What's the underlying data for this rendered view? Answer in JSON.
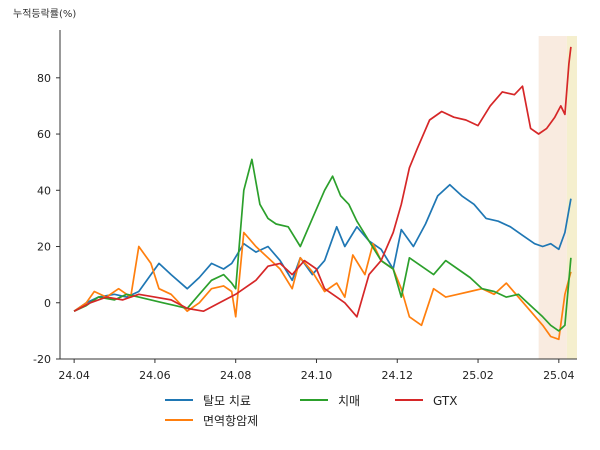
{
  "chart_data": {
    "type": "line",
    "title": "",
    "ylabel": "누적등락률(%)",
    "xlabel": "",
    "ylim": [
      -20,
      97
    ],
    "x_range": [
      -0.35,
      12.45
    ],
    "x_ticks": [
      {
        "label": "24.04",
        "value": 0
      },
      {
        "label": "24.06",
        "value": 2
      },
      {
        "label": "24.08",
        "value": 4
      },
      {
        "label": "24.10",
        "value": 6
      },
      {
        "label": "24.12",
        "value": 8
      },
      {
        "label": "25.02",
        "value": 10
      },
      {
        "label": "25.04",
        "value": 12
      }
    ],
    "y_ticks": [
      {
        "label": "-20",
        "value": -20
      },
      {
        "label": "0",
        "value": 0
      },
      {
        "label": "20",
        "value": 20
      },
      {
        "label": "40",
        "value": 40
      },
      {
        "label": "60",
        "value": 60
      },
      {
        "label": "80",
        "value": 80
      }
    ],
    "highlight_bands": [
      {
        "x0": 11.5,
        "x1": 12.2,
        "color": "#f9ebe0"
      },
      {
        "x0": 12.2,
        "x1": 12.45,
        "color": "#f5efce"
      }
    ],
    "series": [
      {
        "name": "탈모 치료",
        "color": "#1f77b4",
        "x": [
          0,
          0.3,
          0.6,
          1.0,
          1.3,
          1.6,
          1.9,
          2.1,
          2.4,
          2.8,
          3.1,
          3.4,
          3.7,
          3.9,
          4.2,
          4.5,
          4.8,
          5.1,
          5.4,
          5.6,
          5.9,
          6.2,
          6.5,
          6.7,
          7.0,
          7.3,
          7.6,
          7.9,
          8.1,
          8.4,
          8.7,
          9.0,
          9.3,
          9.6,
          9.9,
          10.2,
          10.5,
          10.8,
          11.1,
          11.4,
          11.6,
          11.8,
          12.0,
          12.15,
          12.3
        ],
        "y": [
          -3,
          0,
          2,
          3,
          2,
          4,
          10,
          14,
          10,
          5,
          9,
          14,
          12,
          14,
          21,
          18,
          20,
          15,
          8,
          16,
          10,
          15,
          27,
          20,
          27,
          22,
          19,
          12,
          26,
          20,
          28,
          38,
          42,
          38,
          35,
          30,
          29,
          27,
          24,
          21,
          20,
          21,
          19,
          25,
          37
        ]
      },
      {
        "name": "면역항암제",
        "color": "#ff7f0e",
        "x": [
          0,
          0.3,
          0.5,
          0.8,
          1.1,
          1.4,
          1.6,
          1.9,
          2.1,
          2.4,
          2.8,
          3.1,
          3.4,
          3.7,
          3.9,
          4.0,
          4.2,
          4.5,
          4.8,
          5.1,
          5.4,
          5.6,
          5.9,
          6.2,
          6.5,
          6.7,
          6.9,
          7.2,
          7.4,
          7.6,
          7.9,
          8.1,
          8.3,
          8.6,
          8.9,
          9.2,
          9.5,
          9.8,
          10.1,
          10.4,
          10.7,
          11.0,
          11.3,
          11.6,
          11.8,
          12.0,
          12.15,
          12.3
        ],
        "y": [
          -3,
          0,
          4,
          2,
          5,
          2,
          20,
          14,
          5,
          3,
          -3,
          0,
          5,
          6,
          4,
          -5,
          25,
          20,
          16,
          12,
          5,
          16,
          11,
          4,
          7,
          2,
          17,
          10,
          21,
          15,
          12,
          5,
          -5,
          -8,
          5,
          2,
          3,
          4,
          5,
          3,
          7,
          2,
          -3,
          -8,
          -12,
          -13,
          3,
          11
        ]
      },
      {
        "name": "치매",
        "color": "#2ca02c",
        "x": [
          0,
          0.3,
          0.6,
          1.0,
          1.3,
          1.6,
          1.9,
          2.2,
          2.5,
          2.8,
          3.1,
          3.4,
          3.7,
          3.9,
          4.0,
          4.2,
          4.4,
          4.6,
          4.8,
          5.0,
          5.3,
          5.6,
          5.9,
          6.2,
          6.4,
          6.6,
          6.8,
          7.0,
          7.3,
          7.6,
          7.9,
          8.1,
          8.3,
          8.6,
          8.9,
          9.2,
          9.5,
          9.8,
          10.1,
          10.4,
          10.7,
          11.0,
          11.3,
          11.6,
          11.8,
          12.0,
          12.15,
          12.3
        ],
        "y": [
          -3,
          -1,
          2,
          1,
          3,
          2,
          1,
          0,
          -1,
          -2,
          3,
          8,
          10,
          7,
          5,
          40,
          51,
          35,
          30,
          28,
          27,
          20,
          30,
          40,
          45,
          38,
          35,
          29,
          22,
          15,
          12,
          2,
          16,
          13,
          10,
          15,
          12,
          9,
          5,
          4,
          2,
          3,
          -1,
          -5,
          -8,
          -10,
          -8,
          16
        ]
      },
      {
        "name": "GTX",
        "color": "#d62728",
        "x": [
          0,
          0.4,
          0.8,
          1.2,
          1.6,
          2.0,
          2.4,
          2.8,
          3.2,
          3.6,
          4.0,
          4.2,
          4.5,
          4.8,
          5.1,
          5.4,
          5.7,
          6.0,
          6.2,
          6.5,
          6.7,
          7.0,
          7.3,
          7.6,
          7.9,
          8.1,
          8.3,
          8.5,
          8.8,
          9.1,
          9.4,
          9.7,
          10.0,
          10.3,
          10.6,
          10.9,
          11.1,
          11.3,
          11.5,
          11.7,
          11.9,
          12.05,
          12.15,
          12.25,
          12.3
        ],
        "y": [
          -3,
          0,
          2,
          1,
          3,
          2,
          1,
          -2,
          -3,
          0,
          3,
          5,
          8,
          13,
          14,
          10,
          15,
          12,
          5,
          2,
          0,
          -5,
          10,
          15,
          25,
          35,
          48,
          55,
          65,
          68,
          66,
          65,
          63,
          70,
          75,
          74,
          77,
          62,
          60,
          62,
          66,
          70,
          67,
          85,
          91
        ]
      }
    ]
  }
}
